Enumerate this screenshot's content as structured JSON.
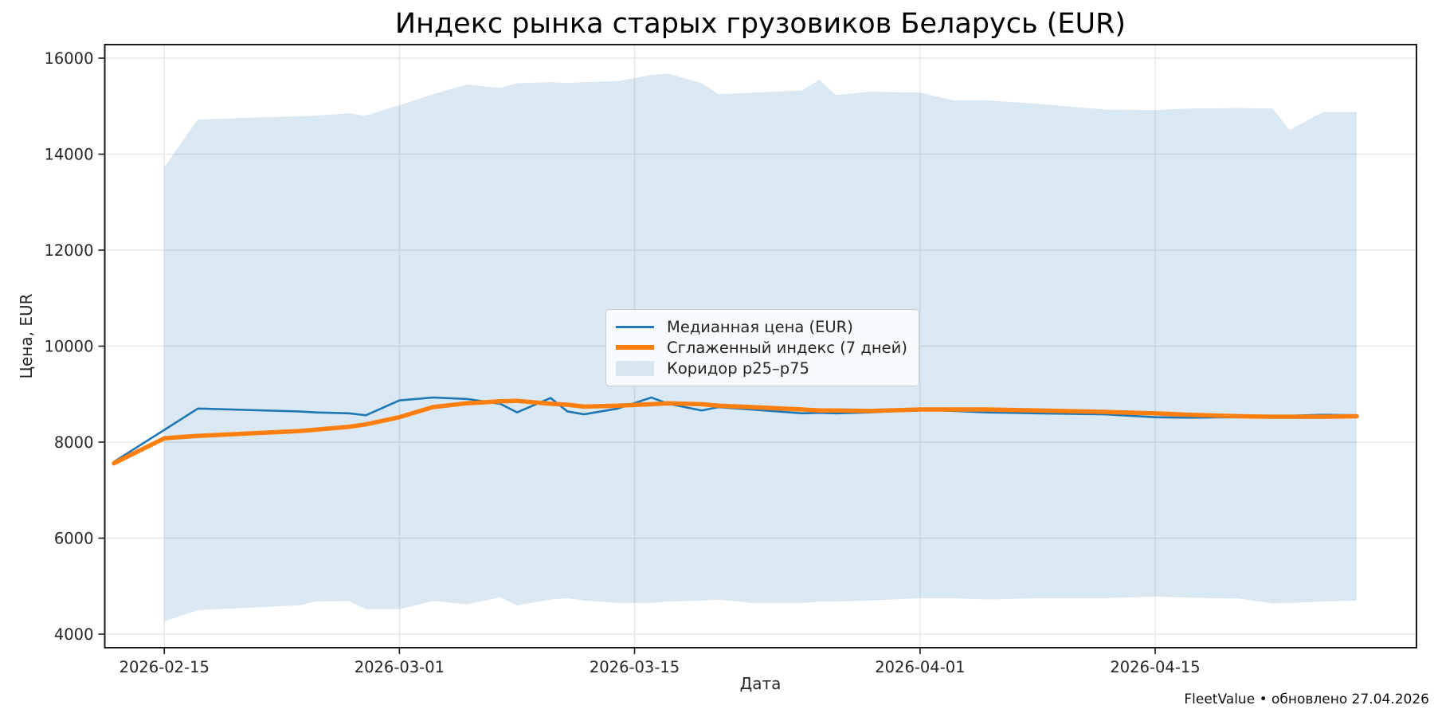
{
  "chart_data": {
    "type": "line",
    "title": "Индекс рынка старых грузовиков Беларусь (EUR)",
    "xlabel": "Дата",
    "ylabel": "Цена, EUR",
    "footer": "FleetValue • обновлено 27.04.2026",
    "grid": true,
    "legend_position": "upper center",
    "ylim": [
      3720,
      16280
    ],
    "yticks": [
      4000,
      6000,
      8000,
      10000,
      12000,
      14000,
      16000
    ],
    "xticks": [
      "2026-02-15",
      "2026-03-01",
      "2026-03-15",
      "2026-04-01",
      "2026-04-15"
    ],
    "x_range": [
      "2026-02-12",
      "2026-04-27"
    ],
    "colors": {
      "median": "#1f77b4",
      "smoothed": "#ff7f0e",
      "band_fill": "rgba(31,119,180,0.17)",
      "band_legend": "#d9e6f1",
      "axes": "#262626",
      "grid": "#e7e7e7"
    },
    "legend": {
      "median": "Медианная цена (EUR)",
      "smoothed": "Сглаженный индекс (7 дней)",
      "band": "Коридор p25–p75"
    },
    "dates": [
      "2026-02-12",
      "2026-02-15",
      "2026-02-17",
      "2026-02-20",
      "2026-02-23",
      "2026-02-24",
      "2026-02-26",
      "2026-02-27",
      "2026-03-01",
      "2026-03-03",
      "2026-03-05",
      "2026-03-07",
      "2026-03-08",
      "2026-03-10",
      "2026-03-11",
      "2026-03-12",
      "2026-03-14",
      "2026-03-16",
      "2026-03-17",
      "2026-03-19",
      "2026-03-20",
      "2026-03-22",
      "2026-03-25",
      "2026-03-26",
      "2026-03-27",
      "2026-03-29",
      "2026-04-01",
      "2026-04-03",
      "2026-04-05",
      "2026-04-08",
      "2026-04-12",
      "2026-04-15",
      "2026-04-17",
      "2026-04-20",
      "2026-04-22",
      "2026-04-23",
      "2026-04-25",
      "2026-04-27"
    ],
    "series": [
      {
        "name": "Медианная цена (EUR)",
        "key": "median",
        "values": [
          7590,
          8255,
          8700,
          8670,
          8640,
          8620,
          8600,
          8560,
          8870,
          8930,
          8900,
          8800,
          8620,
          8920,
          8640,
          8580,
          8700,
          8930,
          8800,
          8660,
          8730,
          8680,
          8600,
          8610,
          8600,
          8620,
          8680,
          8650,
          8620,
          8600,
          8580,
          8520,
          8510,
          8520,
          8540,
          8550,
          8570,
          8560
        ]
      },
      {
        "name": "Сглаженный индекс (7 дней)",
        "key": "smoothed",
        "values": [
          7560,
          8080,
          8130,
          8180,
          8230,
          8260,
          8320,
          8370,
          8520,
          8730,
          8810,
          8850,
          8860,
          8800,
          8780,
          8740,
          8760,
          8790,
          8810,
          8790,
          8760,
          8730,
          8680,
          8660,
          8660,
          8650,
          8680,
          8680,
          8680,
          8660,
          8630,
          8600,
          8570,
          8540,
          8530,
          8530,
          8530,
          8540
        ]
      }
    ],
    "band": {
      "name": "Коридор p25–p75",
      "p25": [
        null,
        4270,
        4500,
        4550,
        4600,
        4680,
        4690,
        4520,
        4520,
        4690,
        4620,
        4770,
        4600,
        4720,
        4750,
        4700,
        4650,
        4650,
        4680,
        4700,
        4720,
        4650,
        4650,
        4680,
        4680,
        4700,
        4750,
        4750,
        4720,
        4750,
        4750,
        4780,
        4760,
        4740,
        4640,
        4650,
        4680,
        4700
      ],
      "p75": [
        null,
        13730,
        14720,
        14760,
        14790,
        14800,
        14850,
        14800,
        15020,
        15250,
        15450,
        15380,
        15480,
        15500,
        15480,
        15500,
        15520,
        15650,
        15680,
        15480,
        15250,
        15280,
        15330,
        15550,
        15230,
        15300,
        15280,
        15120,
        15120,
        15050,
        14930,
        14920,
        14950,
        14960,
        14950,
        14500,
        14880,
        14880
      ]
    }
  }
}
